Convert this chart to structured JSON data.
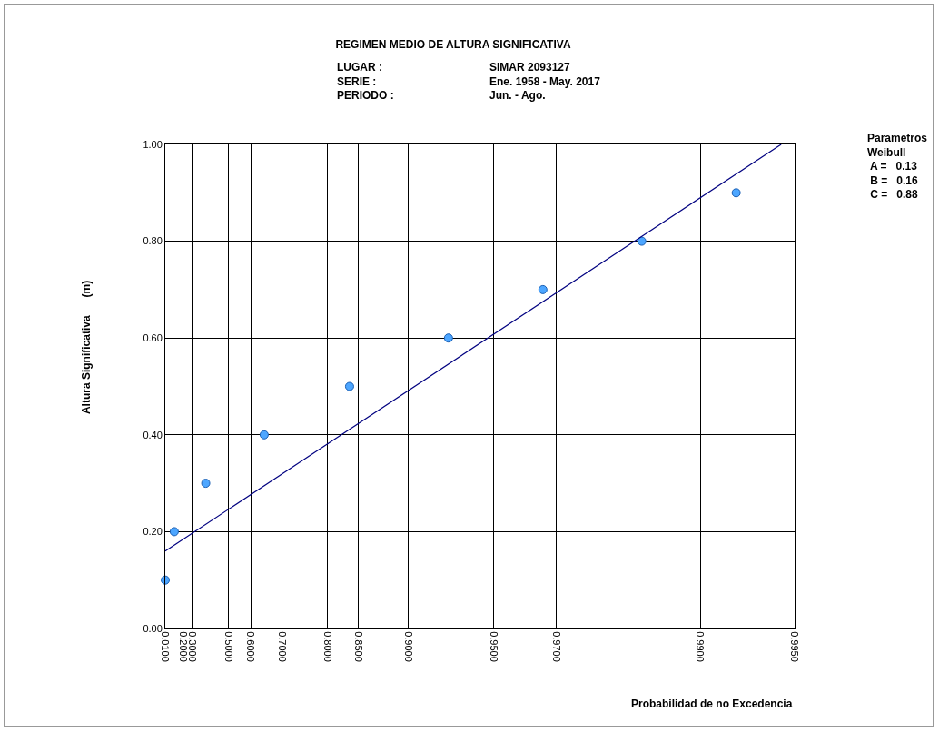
{
  "chart_data": {
    "type": "scatter",
    "title": "REGIMEN MEDIO DE ALTURA SIGNIFICATIVA",
    "xlabel": "Probabilidad de no Excedencia",
    "ylabel": "Altura Significativa      (m)",
    "annotations": [
      "LUGAR :\nSERIE :\nPERIODO :",
      "SIMAR 2093127\nEne. 1958 - May. 2017\nJun. - Ago.",
      "Parametros\nWeibull\n A =   0.13\n B =   0.16\n C =   0.88"
    ],
    "categories": [
      "0.0100",
      null,
      null,
      null,
      "0.2000",
      null,
      "0.3000",
      null,
      null,
      null,
      null,
      null,
      null,
      null,
      "0.5000",
      null,
      null,
      null,
      null,
      "0.6000",
      null,
      null,
      null,
      null,
      null,
      null,
      "0.7000",
      null,
      null,
      null,
      null,
      null,
      null,
      null,
      null,
      null,
      "0.8000",
      null,
      null,
      null,
      null,
      null,
      null,
      "0.8500",
      null,
      null,
      null,
      null,
      null,
      null,
      null,
      null,
      null,
      null,
      "0.9000",
      null,
      null,
      null,
      null,
      null,
      null,
      null,
      null,
      null,
      null,
      null,
      null,
      null,
      null,
      null,
      null,
      null,
      null,
      "0.9500",
      null,
      null,
      null,
      null,
      null,
      null,
      null,
      null,
      null,
      null,
      null,
      null,
      null,
      "0.9700",
      null,
      null,
      null,
      null,
      null,
      null,
      null,
      null,
      null,
      null,
      null,
      null,
      null,
      null,
      null,
      null,
      null,
      null,
      null,
      null,
      null,
      null,
      null,
      null,
      null,
      null,
      null,
      null,
      null,
      null,
      null,
      "0.9900",
      null,
      null,
      null,
      null,
      null,
      null,
      null,
      null,
      null,
      null,
      null,
      null,
      null,
      null,
      null,
      null,
      null,
      null,
      null,
      null,
      "0.9950"
    ],
    "series": [
      {
        "color": "#4da6ff",
        "marker": "circle",
        "values": [
          0.1,
          null,
          0.2,
          null,
          null,
          null,
          null,
          null,
          null,
          0.3,
          null,
          null,
          null,
          null,
          null,
          null,
          null,
          null,
          null,
          null,
          null,
          null,
          0.4,
          null,
          null,
          null,
          null,
          null,
          null,
          null,
          null,
          null,
          null,
          null,
          null,
          null,
          null,
          null,
          null,
          null,
          null,
          0.5,
          null,
          null,
          null,
          null,
          null,
          null,
          null,
          null,
          null,
          null,
          null,
          null,
          null,
          null,
          null,
          null,
          null,
          null,
          null,
          null,
          null,
          0.6,
          null,
          null,
          null,
          null,
          null,
          null,
          null,
          null,
          null,
          null,
          null,
          null,
          null,
          null,
          null,
          null,
          null,
          null,
          null,
          null,
          0.7,
          null,
          null,
          null,
          null,
          null,
          null,
          null,
          null,
          null,
          null,
          null,
          null,
          null,
          null,
          null,
          null,
          null,
          null,
          null,
          null,
          null,
          0.8,
          null,
          null,
          null,
          null,
          null,
          null,
          null,
          null,
          null,
          null,
          null,
          null,
          null,
          null,
          null,
          null,
          null,
          null,
          null,
          null,
          0.9,
          null,
          null,
          null,
          null,
          null,
          null,
          null,
          null,
          null,
          null,
          null,
          null,
          null
        ]
      },
      {
        "type": "line",
        "color": "#000080",
        "line_style": "solid",
        "values": [
          0.16,
          null,
          null,
          null,
          null,
          null,
          null,
          null,
          null,
          null,
          null,
          null,
          null,
          null,
          null,
          null,
          null,
          null,
          null,
          null,
          null,
          null,
          null,
          null,
          null,
          null,
          null,
          null,
          null,
          null,
          null,
          null,
          null,
          null,
          null,
          null,
          null,
          null,
          null,
          null,
          null,
          null,
          null,
          null,
          null,
          null,
          null,
          null,
          null,
          null,
          null,
          null,
          null,
          null,
          null,
          null,
          null,
          null,
          null,
          null,
          null,
          null,
          null,
          null,
          null,
          null,
          null,
          null,
          null,
          null,
          null,
          null,
          null,
          null,
          null,
          null,
          null,
          null,
          null,
          null,
          null,
          null,
          null,
          null,
          null,
          null,
          null,
          null,
          null,
          null,
          null,
          null,
          null,
          null,
          null,
          null,
          null,
          null,
          null,
          null,
          null,
          null,
          null,
          null,
          null,
          null,
          null,
          null,
          null,
          null,
          null,
          null,
          null,
          null,
          null,
          null,
          null,
          null,
          null,
          null,
          null,
          null,
          null,
          null,
          null,
          null,
          null,
          null,
          null,
          null,
          null,
          null,
          null,
          null,
          null,
          null,
          null,
          1.0,
          null,
          null,
          null
        ]
      }
    ],
    "ylim": [
      0,
      1
    ],
    "yticks": [
      {
        "value": 0,
        "label": "0.00"
      },
      {
        "value": 0.2,
        "label": "0.20"
      },
      {
        "value": 0.4,
        "label": "0.40"
      },
      {
        "value": 0.6,
        "label": "0.60"
      },
      {
        "value": 0.8,
        "label": "0.80"
      },
      {
        "value": 1,
        "label": "1.00"
      }
    ],
    "grid": true
  }
}
